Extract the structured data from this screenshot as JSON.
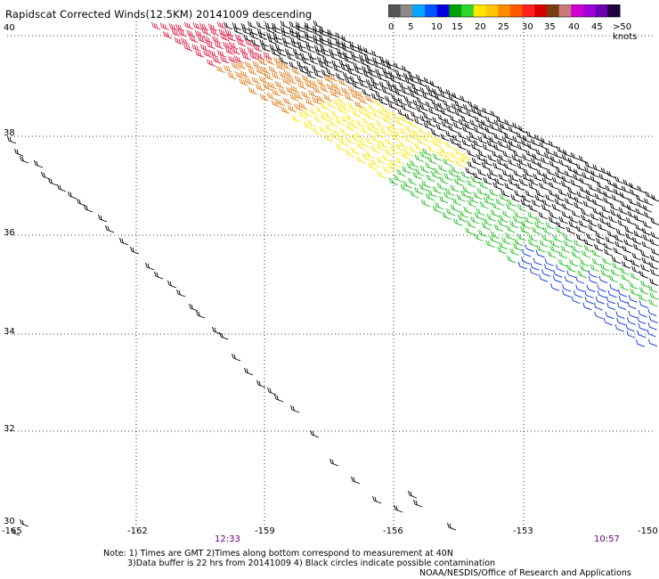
{
  "title": "Rapidscat Corrected Winds(12.5KM) 20141009 descending",
  "colorbar": {
    "labels": [
      "0",
      "5",
      "10",
      "15",
      "20",
      "25",
      "30",
      "35",
      "40",
      "45",
      ">50 knots"
    ],
    "colors": [
      "#555555",
      "#8a8a8a",
      "#00a8ff",
      "#0055ff",
      "#0000e0",
      "#00a000",
      "#2cd62c",
      "#ffe600",
      "#ffc600",
      "#ff8c00",
      "#ff5a00",
      "#ff2020",
      "#d80000",
      "#7a3a10",
      "#c87a7a",
      "#d000d0",
      "#a000d8",
      "#6a00b0",
      "#200040"
    ]
  },
  "axes": {
    "lat_labels": [
      "40",
      "38",
      "36",
      "34",
      "32",
      "30"
    ],
    "lon_labels": [
      "-165",
      "-162",
      "-159",
      "-156",
      "-153",
      "-150"
    ]
  },
  "times": {
    "left": "12:33",
    "right": "10:57"
  },
  "notes": {
    "line1": "Note: 1) Times are GMT 2)Times along bottom correspond to measurement at 40N",
    "line2": "3)Data buffer is 22 hrs from 20141009 4) Black circles indicate possible contamination",
    "line3": "NOAA/NESDIS/Office of Research and Applications"
  },
  "wind_colors": {
    "black": "#000000",
    "red": "#e0204a",
    "orange": "#e08020",
    "yellow": "#ffe600",
    "green": "#20c020",
    "blue": "#0030e0"
  }
}
